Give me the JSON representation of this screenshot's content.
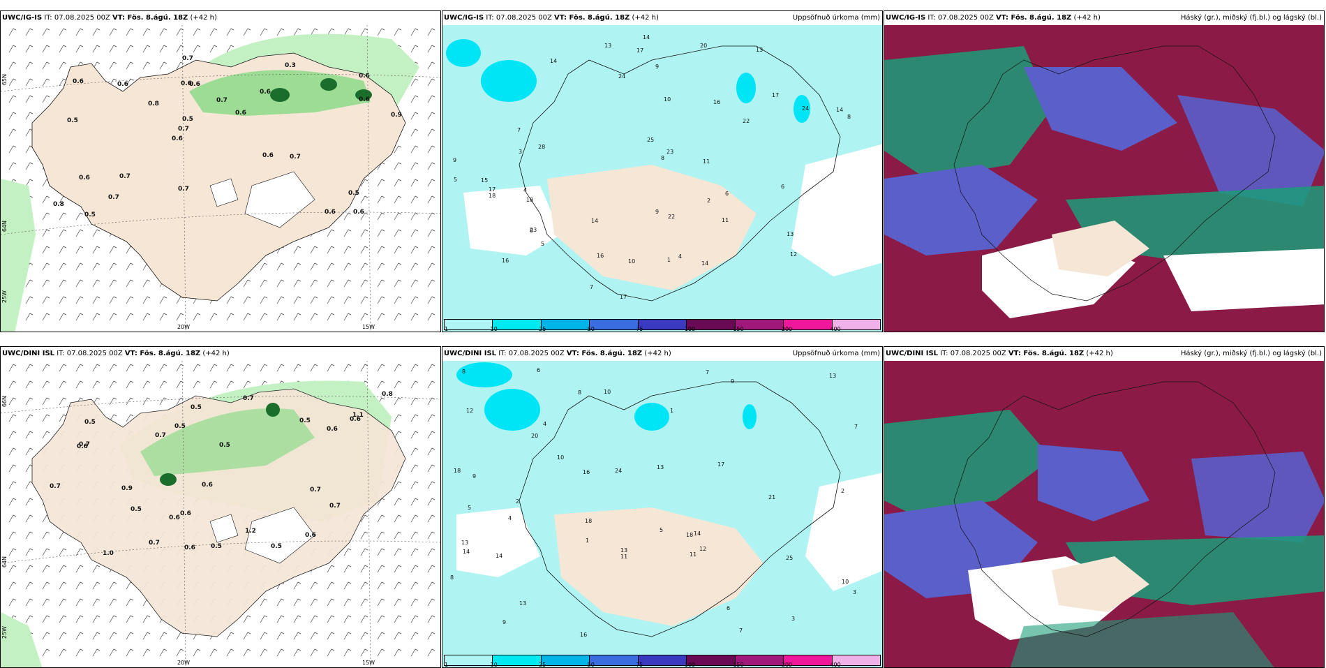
{
  "colors": {
    "land": "#f5e6d6",
    "precip_light": "#c4f1c4",
    "precip_mid": "#7fd87f",
    "precip_dark": "#1b6d2b",
    "accum_base": "#aff3f3",
    "accum_strong": "#00e5f5",
    "cloud_high": "#8b1a47",
    "cloud_mid": "#5a5fc9",
    "cloud_low": "#1c9c7a"
  },
  "rows": [
    {
      "model": "UWC/IG-IS",
      "it_text": " IT: 07.08.2025 00Z ",
      "vt_label": "VT: Fös. 8.ágú. 18Z",
      "lead": " (+42 h)",
      "precip_title": "Uppsöfnuð úrkoma (mm)",
      "cloud_title": "Háský (gr.), miðský (fj.bl.) og lágský (bl.)",
      "precip_values": [
        "0.6",
        "0.5",
        "0.6",
        "0.6",
        "0.6",
        "0.5",
        "0.6",
        "0.7",
        "0.6",
        "0.8",
        "0.8",
        "0.7",
        "0.6",
        "0.6",
        "0.7",
        "0.6",
        "0.7",
        "0.9",
        "0.6",
        "0.6",
        "0.7",
        "0.7",
        "0.5",
        "0.6",
        "0.3",
        "0.7",
        "0.6",
        "0.5"
      ],
      "accum_values": [
        "16",
        "13",
        "14",
        "17",
        "22",
        "28",
        "18",
        "23",
        "24",
        "22",
        "15",
        "14",
        "11",
        "8",
        "17",
        "13",
        "12",
        "9",
        "8",
        "7",
        "14",
        "17",
        "24",
        "23",
        "25",
        "16",
        "17",
        "20",
        "10",
        "6",
        "7",
        "5",
        "4",
        "9",
        "13",
        "18",
        "14",
        "11",
        "16",
        "6",
        "8",
        "9",
        "10",
        "4",
        "5",
        "3",
        "2",
        "1",
        "14"
      ]
    },
    {
      "model": "UWC/DINI ISL",
      "it_text": " IT: 07.08.2025 00Z ",
      "vt_label": "VT: Fös. 8.ágú. 18Z",
      "lead": " (+42 h)",
      "precip_title": "Uppsöfnuð úrkoma (mm)",
      "cloud_title": "Háský (gr.), miðský (fj.bl.) og lágský (bl.)",
      "precip_values": [
        "0.6",
        "0.6",
        "0.7",
        "1.0",
        "0.5",
        "0.7",
        "0.8",
        "1.1",
        "1.2",
        "0.6",
        "0.5",
        "0.5",
        "0.6",
        "0.6",
        "0.7",
        "0.5",
        "0.9",
        "0.7",
        "0.6",
        "0.7",
        "0.6",
        "0.5",
        "0.6",
        "0.7",
        "0.5",
        "0.5",
        "0.5",
        "0.7"
      ],
      "accum_values": [
        "12",
        "9",
        "13",
        "11",
        "18",
        "24",
        "21",
        "14",
        "16",
        "13",
        "13",
        "18",
        "14",
        "13",
        "25",
        "10",
        "17",
        "14",
        "16",
        "20",
        "13",
        "18",
        "11",
        "9",
        "8",
        "7",
        "6",
        "5",
        "4",
        "3",
        "2",
        "1",
        "10",
        "12",
        "5",
        "6",
        "7",
        "8",
        "3",
        "4",
        "2",
        "1",
        "7",
        "8",
        "9",
        "10"
      ]
    }
  ],
  "lon_labels": [
    "20W",
    "15W"
  ],
  "lat_labels": {
    "top": [
      "65N",
      "64N",
      "25W"
    ],
    "bottom": [
      "66N",
      "64N",
      "25W"
    ]
  },
  "colorbar_ticks": [
    "1",
    "10",
    "25",
    "50",
    "75",
    "100",
    "150",
    "200",
    "400"
  ],
  "colorbar_colors": [
    "#b0f5f5",
    "#00e8f0",
    "#00b4e8",
    "#3a6ee0",
    "#3a3ac0",
    "#6a0a55",
    "#a0187a",
    "#f0189a",
    "#f0b0e8"
  ]
}
